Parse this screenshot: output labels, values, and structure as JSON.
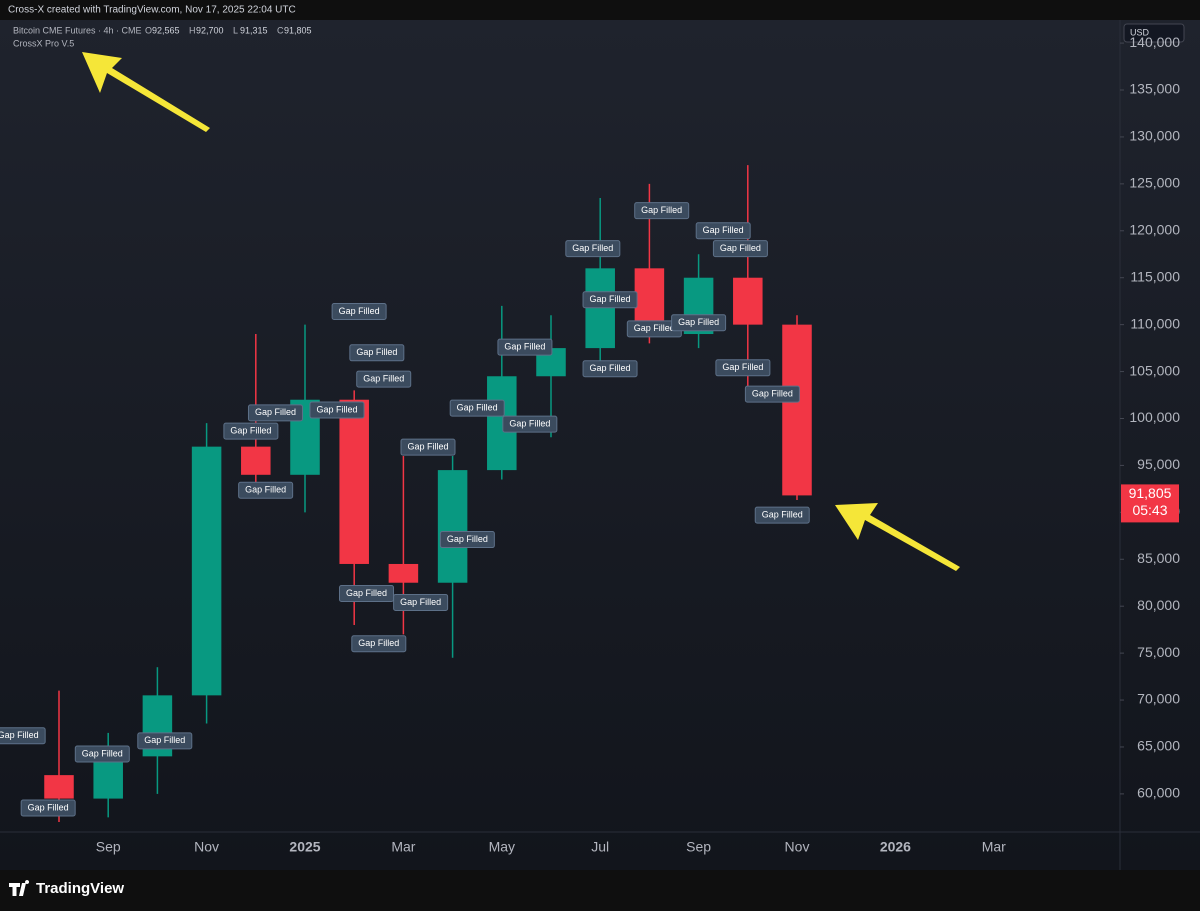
{
  "chart_data": {
    "type": "candlestick",
    "title": "Bitcoin CME Futures · 4h · CME",
    "credit": "Cross-X created with TradingView.com, Nov 17, 2025 22:04 UTC",
    "indicator": "CrossX Pro V.5",
    "currency": "USD",
    "ohlc": [
      {
        "key": "O",
        "value": "92,565"
      },
      {
        "key": "H",
        "value": "92,700"
      },
      {
        "key": "L",
        "value": "91,315"
      },
      {
        "key": "C",
        "value": "91,805"
      }
    ],
    "last_price": {
      "value": 91805,
      "label": "91,805"
    },
    "countdown": "05:43",
    "brand": "TradingView",
    "categories": [
      null,
      "Sep",
      null,
      "Nov",
      null,
      "2025",
      null,
      "Mar",
      null,
      "May",
      null,
      "Jul",
      null,
      "Sep",
      null,
      "Nov",
      null,
      "2026",
      null,
      "Mar"
    ],
    "open": [
      62000,
      59500,
      64000,
      70500,
      97000,
      94000,
      102000,
      84500,
      82500,
      94500,
      104500,
      107500,
      116000,
      109000,
      115000,
      110000,
      null,
      null,
      null,
      null
    ],
    "high": [
      71000,
      66500,
      73500,
      99500,
      109000,
      110000,
      103000,
      96000,
      96000,
      112000,
      111000,
      123500,
      125000,
      117500,
      127000,
      111000,
      null,
      null,
      null,
      null
    ],
    "low": [
      57000,
      57500,
      60000,
      67500,
      92000,
      90000,
      78000,
      77000,
      74500,
      93500,
      98000,
      105000,
      108000,
      107500,
      103000,
      91315,
      null,
      null,
      null,
      null
    ],
    "close": [
      59500,
      64000,
      70500,
      97000,
      94000,
      102000,
      84500,
      82500,
      94500,
      104500,
      107500,
      116000,
      109000,
      115000,
      110000,
      91805,
      null,
      null,
      null,
      null
    ],
    "up_color": "#089981",
    "down_color": "#f23645",
    "ylim": [
      55940,
      142460
    ],
    "yticks": [
      {
        "value": 60000,
        "label": "60,000"
      },
      {
        "value": 65000,
        "label": "65,000"
      },
      {
        "value": 70000,
        "label": "70,000"
      },
      {
        "value": 75000,
        "label": "75,000"
      },
      {
        "value": 80000,
        "label": "80,000"
      },
      {
        "value": 85000,
        "label": "85,000"
      },
      {
        "value": 90000,
        "label": "90,000"
      },
      {
        "value": 95000,
        "label": "95,000"
      },
      {
        "value": 100000,
        "label": "100,000"
      },
      {
        "value": 105000,
        "label": "105,000"
      },
      {
        "value": 110000,
        "label": "110,000"
      },
      {
        "value": 115000,
        "label": "115,000"
      },
      {
        "value": 120000,
        "label": "120,000"
      },
      {
        "value": 125000,
        "label": "125,000"
      },
      {
        "value": 130000,
        "label": "130,000"
      },
      {
        "value": 135000,
        "label": "135,000"
      },
      {
        "value": 140000,
        "label": "140,000"
      }
    ],
    "annotations": [
      {
        "text": "Gap Filled",
        "x": 6.1,
        "y": 111400
      },
      {
        "text": "Gap Filled",
        "x": 6.46,
        "y": 107000
      },
      {
        "text": "Gap Filled",
        "x": 6.6,
        "y": 104200
      },
      {
        "text": "Gap Filled",
        "x": 4.4,
        "y": 100600
      },
      {
        "text": "Gap Filled",
        "x": 5.65,
        "y": 100900
      },
      {
        "text": "Gap Filled",
        "x": 3.9,
        "y": 98650
      },
      {
        "text": "Gap Filled",
        "x": 4.2,
        "y": 92350
      },
      {
        "text": "Gap Filled",
        "x": 7.5,
        "y": 96950
      },
      {
        "text": "Gap Filled",
        "x": 6.25,
        "y": 81350
      },
      {
        "text": "Gap Filled",
        "x": 6.5,
        "y": 76000
      },
      {
        "text": "Gap Filled",
        "x": 7.35,
        "y": 80400
      },
      {
        "text": "Gap Filled",
        "x": 8.3,
        "y": 87100
      },
      {
        "text": "Gap Filled",
        "x": 8.5,
        "y": 101100
      },
      {
        "text": "Gap Filled",
        "x": 9.57,
        "y": 99400
      },
      {
        "text": "Gap Filled",
        "x": 9.47,
        "y": 107600
      },
      {
        "text": "Gap Filled",
        "x": 11.2,
        "y": 105300
      },
      {
        "text": "Gap Filled",
        "x": 11.2,
        "y": 112650
      },
      {
        "text": "Gap Filled",
        "x": 10.85,
        "y": 118100
      },
      {
        "text": "Gap Filled",
        "x": 12.25,
        "y": 122150
      },
      {
        "text": "Gap Filled",
        "x": 13.5,
        "y": 120000
      },
      {
        "text": "Gap Filled",
        "x": 13.85,
        "y": 118100
      },
      {
        "text": "Gap Filled",
        "x": 12.1,
        "y": 109550
      },
      {
        "text": "Gap Filled",
        "x": 13.0,
        "y": 110200
      },
      {
        "text": "Gap Filled",
        "x": 13.9,
        "y": 105400
      },
      {
        "text": "Gap Filled",
        "x": 14.5,
        "y": 102600
      },
      {
        "text": "Gap Filled",
        "x": 14.7,
        "y": 89700
      },
      {
        "text": "Gap Filled",
        "x": -0.22,
        "y": 58500
      },
      {
        "text": "Gap Filled",
        "x": 0.88,
        "y": 64250
      },
      {
        "text": "Gap Filled",
        "x": 2.15,
        "y": 65650
      },
      {
        "text": "Gap Filled",
        "x": -0.83,
        "y": 66200
      }
    ]
  }
}
